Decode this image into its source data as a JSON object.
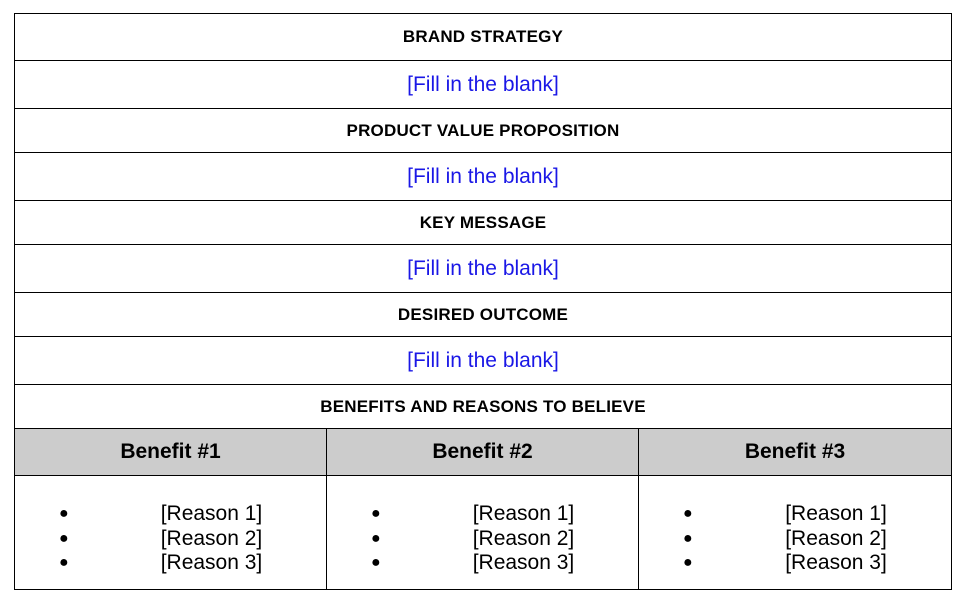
{
  "sections": [
    {
      "heading": "BRAND STRATEGY",
      "value": "[Fill in the blank]"
    },
    {
      "heading": "PRODUCT VALUE PROPOSITION",
      "value": "[Fill in the blank]"
    },
    {
      "heading": "KEY MESSAGE",
      "value": "[Fill in the blank]"
    },
    {
      "heading": "DESIRED OUTCOME",
      "value": "[Fill in the blank]"
    }
  ],
  "benefits_heading": "BENEFITS AND REASONS TO BELIEVE",
  "benefits": [
    {
      "title": "Benefit #1",
      "reasons": [
        "[Reason 1]",
        "[Reason 2]",
        "[Reason 3]"
      ]
    },
    {
      "title": "Benefit #2",
      "reasons": [
        "[Reason 1]",
        "[Reason 2]",
        "[Reason 3]"
      ]
    },
    {
      "title": "Benefit #3",
      "reasons": [
        "[Reason 1]",
        "[Reason 2]",
        "[Reason 3]"
      ]
    }
  ],
  "bullet_glyph": "●",
  "colors": {
    "placeholder_text": "#1a17e6",
    "benefit_header_bg": "#cccccc",
    "border": "#000000"
  }
}
